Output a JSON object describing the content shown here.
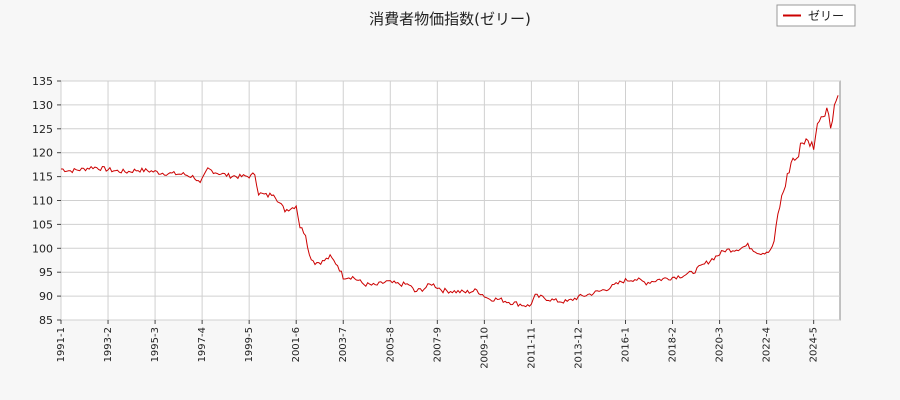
{
  "chart_data": {
    "type": "line",
    "title": "消費者物価指数(ゼリー)",
    "xlabel": "",
    "ylabel": "",
    "ylim": [
      85,
      135
    ],
    "yticks": [
      85,
      90,
      95,
      100,
      105,
      110,
      115,
      120,
      125,
      130,
      135
    ],
    "xticks": [
      "1991-1",
      "1993-2",
      "1995-3",
      "1997-4",
      "1999-5",
      "2001-6",
      "2003-7",
      "2005-8",
      "2007-9",
      "2009-10",
      "2011-11",
      "2013-12",
      "2016-1",
      "2018-2",
      "2020-3",
      "2022-4",
      "2024-5"
    ],
    "grid": true,
    "legend_position": "top-right",
    "series": [
      {
        "name": "ゼリー",
        "color": "#cc0000",
        "points": [
          [
            "1991-01",
            116.6
          ],
          [
            "1991-06",
            116.2
          ],
          [
            "1991-12",
            116.5
          ],
          [
            "1992-06",
            117.0
          ],
          [
            "1992-12",
            116.6
          ],
          [
            "1993-06",
            116.2
          ],
          [
            "1993-12",
            116.0
          ],
          [
            "1994-06",
            116.4
          ],
          [
            "1994-12",
            116.2
          ],
          [
            "1995-06",
            115.8
          ],
          [
            "1995-12",
            115.6
          ],
          [
            "1996-06",
            115.5
          ],
          [
            "1996-12",
            114.9
          ],
          [
            "1997-03",
            113.4
          ],
          [
            "1997-07",
            116.6
          ],
          [
            "1997-12",
            115.8
          ],
          [
            "1998-06",
            115.2
          ],
          [
            "1998-12",
            115.0
          ],
          [
            "1999-06",
            115.1
          ],
          [
            "1999-08",
            115.6
          ],
          [
            "1999-10",
            111.5
          ],
          [
            "2000-03",
            111.0
          ],
          [
            "2000-06",
            111.6
          ],
          [
            "2000-09",
            109.5
          ],
          [
            "2000-12",
            108.0
          ],
          [
            "2001-04",
            108.5
          ],
          [
            "2001-06",
            109.0
          ],
          [
            "2001-08",
            104.5
          ],
          [
            "2001-11",
            103.0
          ],
          [
            "2002-01",
            98.5
          ],
          [
            "2002-04",
            97.0
          ],
          [
            "2002-08",
            97.2
          ],
          [
            "2002-12",
            98.2
          ],
          [
            "2003-04",
            96.5
          ],
          [
            "2003-07",
            94.0
          ],
          [
            "2003-12",
            94.0
          ],
          [
            "2004-06",
            92.5
          ],
          [
            "2004-12",
            92.2
          ],
          [
            "2005-06",
            93.0
          ],
          [
            "2005-12",
            92.5
          ],
          [
            "2006-06",
            92.4
          ],
          [
            "2006-09",
            90.9
          ],
          [
            "2007-02",
            91.6
          ],
          [
            "2007-06",
            92.6
          ],
          [
            "2007-12",
            91.2
          ],
          [
            "2008-06",
            91.0
          ],
          [
            "2008-12",
            90.8
          ],
          [
            "2009-06",
            91.2
          ],
          [
            "2009-12",
            89.5
          ],
          [
            "2010-06",
            89.3
          ],
          [
            "2010-12",
            88.7
          ],
          [
            "2011-06",
            88.2
          ],
          [
            "2011-10",
            87.9
          ],
          [
            "2012-01",
            90.0
          ],
          [
            "2012-06",
            89.6
          ],
          [
            "2012-12",
            89.0
          ],
          [
            "2013-06",
            88.8
          ],
          [
            "2013-12",
            89.8
          ],
          [
            "2014-06",
            90.4
          ],
          [
            "2014-12",
            91.1
          ],
          [
            "2015-06",
            92.0
          ],
          [
            "2015-12",
            93.2
          ],
          [
            "2016-06",
            93.6
          ],
          [
            "2016-12",
            92.8
          ],
          [
            "2017-06",
            93.4
          ],
          [
            "2017-12",
            93.8
          ],
          [
            "2018-06",
            94.2
          ],
          [
            "2018-12",
            94.8
          ],
          [
            "2019-06",
            96.4
          ],
          [
            "2019-12",
            98.0
          ],
          [
            "2020-06",
            99.6
          ],
          [
            "2020-12",
            99.8
          ],
          [
            "2021-06",
            100.6
          ],
          [
            "2021-12",
            99.0
          ],
          [
            "2022-06",
            99.4
          ],
          [
            "2022-08",
            101.5
          ],
          [
            "2022-10",
            107.0
          ],
          [
            "2022-12",
            110.5
          ],
          [
            "2023-03",
            115.0
          ],
          [
            "2023-06",
            119.0
          ],
          [
            "2023-08",
            118.0
          ],
          [
            "2023-10",
            122.0
          ],
          [
            "2023-12",
            122.4
          ],
          [
            "2024-03",
            122.0
          ],
          [
            "2024-05",
            121.5
          ],
          [
            "2024-08",
            127.5
          ],
          [
            "2024-10",
            128.0
          ],
          [
            "2024-12",
            129.5
          ],
          [
            "2025-02",
            125.5
          ],
          [
            "2025-04",
            130.0
          ],
          [
            "2025-06",
            132.0
          ]
        ]
      }
    ]
  }
}
